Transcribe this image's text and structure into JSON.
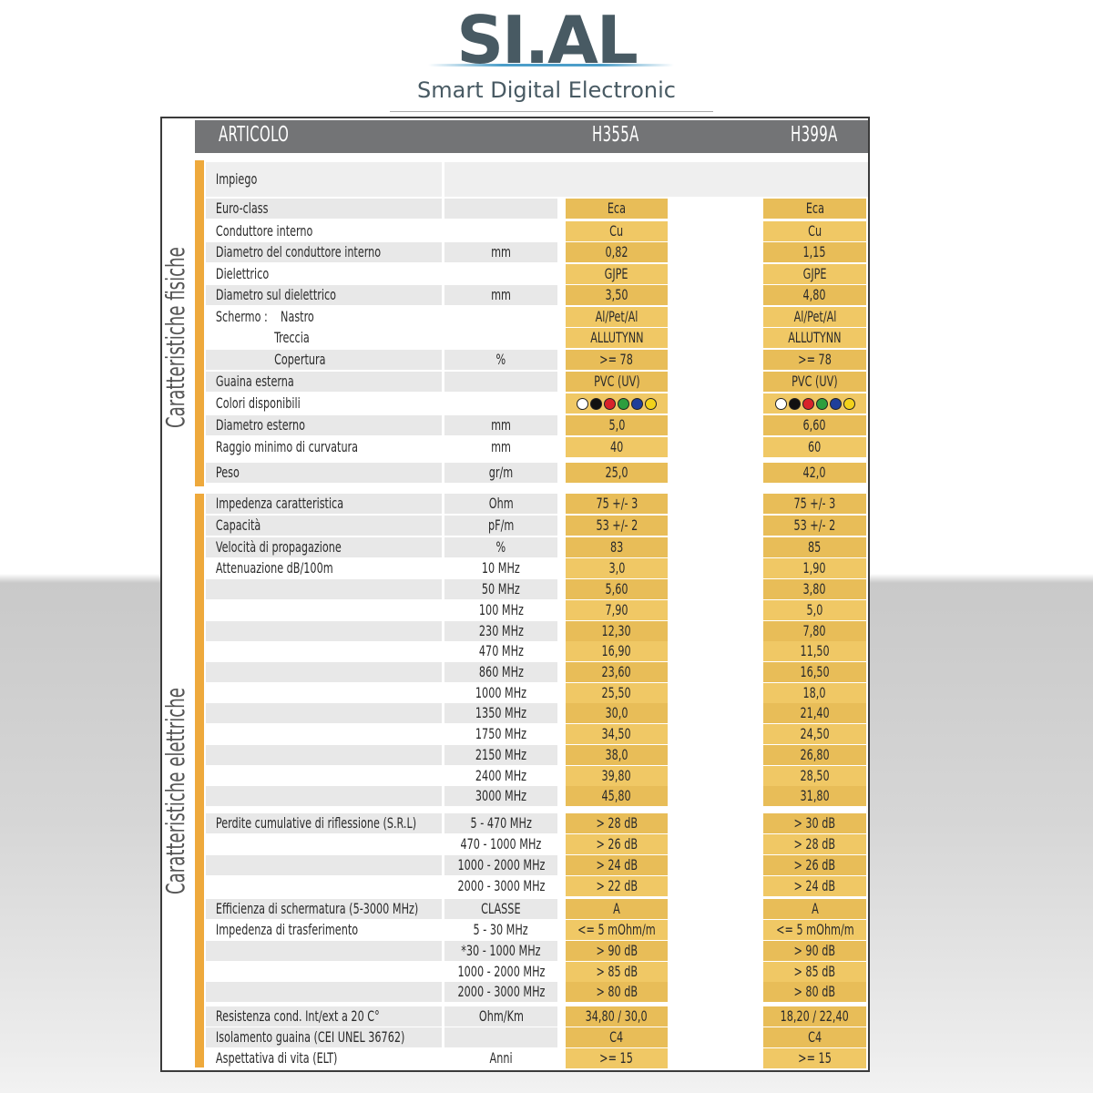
{
  "brand": {
    "name": "SI.AL",
    "tagline": "Smart Digital Electronic",
    "colors": {
      "primary": "#485a63",
      "accent": "#4b9ec9",
      "highlight": "#eea93c",
      "cell": "#f0c865"
    }
  },
  "table": {
    "header": {
      "article": "ARTICOLO",
      "col_a": "H355A",
      "col_b": "H399A"
    },
    "sections": {
      "physical": "Caratteristiche fisiche",
      "electrical": "Caratteristiche elettriche"
    },
    "impiego": "Impiego",
    "rows": [
      {
        "label": "Euro-class",
        "unit": "",
        "a": "Eca",
        "b": "Eca"
      },
      {
        "label": "Conduttore interno",
        "unit": "",
        "a": "Cu",
        "b": "Cu"
      },
      {
        "label": "Diametro del conduttore interno",
        "unit": "mm",
        "a": "0,82",
        "b": "1,15"
      },
      {
        "label": "Dielettrico",
        "unit": "",
        "a": "GJPE",
        "b": "GJPE"
      },
      {
        "label": "Diametro sul dielettrico",
        "unit": "mm",
        "a": "3,50",
        "b": "4,80"
      },
      {
        "label": "Schermo :    Nastro",
        "unit": "",
        "a": "Al/Pet/Al",
        "b": "Al/Pet/Al"
      },
      {
        "label": "                  Treccia",
        "unit": "",
        "a": "ALLUTYNN",
        "b": "ALLUTYNN"
      },
      {
        "label": "                  Copertura",
        "unit": "%",
        "a": ">= 78",
        "b": ">= 78"
      },
      {
        "label": "Guaina esterna",
        "unit": "",
        "a": "PVC (UV)",
        "b": "PVC (UV)"
      },
      {
        "label": "Colori disponibili",
        "unit": "",
        "a": "",
        "b": ""
      },
      {
        "label": "Diametro esterno",
        "unit": "mm",
        "a": "5,0",
        "b": "6,60"
      },
      {
        "label": "Raggio minimo di curvatura",
        "unit": "mm",
        "a": "40",
        "b": "60"
      },
      {
        "label": "Peso",
        "unit": "gr/m",
        "a": "25,0",
        "b": "42,0"
      },
      {
        "label": "Impedenza caratteristica",
        "unit": "Ohm",
        "a": "75 +/- 3",
        "b": "75 +/- 3"
      },
      {
        "label": "Capacità",
        "unit": "pF/m",
        "a": "53 +/- 2",
        "b": "53 +/- 2"
      },
      {
        "label": "Velocità di propagazione",
        "unit": "%",
        "a": "83",
        "b": "85"
      },
      {
        "label": "Attenuazione dB/100m",
        "unit": "10 MHz",
        "a": "3,0",
        "b": "1,90"
      },
      {
        "label": "",
        "unit": "50 MHz",
        "a": "5,60",
        "b": "3,80"
      },
      {
        "label": "",
        "unit": "100 MHz",
        "a": "7,90",
        "b": "5,0"
      },
      {
        "label": "",
        "unit": "230 MHz",
        "a": "12,30",
        "b": "7,80"
      },
      {
        "label": "",
        "unit": "470 MHz",
        "a": "16,90",
        "b": "11,50"
      },
      {
        "label": "",
        "unit": "860 MHz",
        "a": "23,60",
        "b": "16,50"
      },
      {
        "label": "",
        "unit": "1000 MHz",
        "a": "25,50",
        "b": "18,0"
      },
      {
        "label": "",
        "unit": "1350 MHz",
        "a": "30,0",
        "b": "21,40"
      },
      {
        "label": "",
        "unit": "1750 MHz",
        "a": "34,50",
        "b": "24,50"
      },
      {
        "label": "",
        "unit": "2150 MHz",
        "a": "38,0",
        "b": "26,80"
      },
      {
        "label": "",
        "unit": "2400 MHz",
        "a": "39,80",
        "b": "28,50"
      },
      {
        "label": "",
        "unit": "3000 MHz",
        "a": "45,80",
        "b": "31,80"
      },
      {
        "label": "Perdite cumulative di riflessione (S.R.L)",
        "unit": "5 - 470 MHz",
        "a": "> 28 dB",
        "b": "> 30 dB"
      },
      {
        "label": "",
        "unit": "470 - 1000 MHz",
        "a": "> 26 dB",
        "b": "> 28 dB"
      },
      {
        "label": "",
        "unit": "1000 - 2000 MHz",
        "a": "> 24 dB",
        "b": "> 26 dB"
      },
      {
        "label": "",
        "unit": "2000 - 3000 MHz",
        "a": "> 22 dB",
        "b": "> 24 dB"
      },
      {
        "label": "Efficienza di schermatura (5-3000 MHz)",
        "unit": "CLASSE",
        "a": "A",
        "b": "A"
      },
      {
        "label": "Impedenza di trasferimento",
        "unit": "5 - 30 MHz",
        "a": "<= 5 mOhm/m",
        "b": "<= 5 mOhm/m"
      },
      {
        "label": "",
        "unit": "*30 - 1000 MHz",
        "a": "> 90 dB",
        "b": "> 90 dB"
      },
      {
        "label": "",
        "unit": "1000 - 2000 MHz",
        "a": "> 85 dB",
        "b": "> 85 dB"
      },
      {
        "label": "",
        "unit": "2000 - 3000 MHz",
        "a": "> 80 dB",
        "b": "> 80 dB"
      },
      {
        "label": "Resistenza cond. Int/ext a 20 C°",
        "unit": "Ohm/Km",
        "a": "34,80 / 30,0",
        "b": "18,20 / 22,40"
      },
      {
        "label": "Isolamento guaina (CEI UNEL 36762)",
        "unit": "",
        "a": "C4",
        "b": "C4"
      },
      {
        "label": "Aspettativa di vita (ELT)",
        "unit": "Anni",
        "a": ">= 15",
        "b": ">= 15"
      }
    ],
    "colors_available": [
      "#ffffff",
      "#111111",
      "#d8232a",
      "#2e9e3e",
      "#1f3f9a",
      "#f2d21b"
    ]
  }
}
